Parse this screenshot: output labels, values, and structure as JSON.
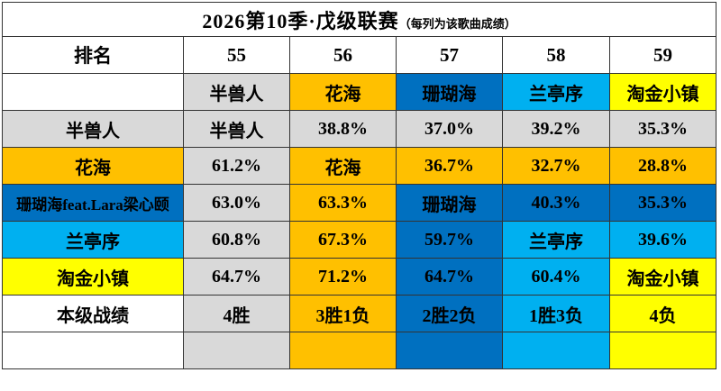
{
  "title": {
    "main": "2026第10季·戊级联赛",
    "sub": "（每列为该歌曲成绩）"
  },
  "palette": {
    "white": "#ffffff",
    "gray": "#d9d9d9",
    "orange": "#ffc000",
    "blue": "#0070c0",
    "cyan": "#00b0f0",
    "yellow": "#ffff00"
  },
  "table": {
    "header": [
      "排名",
      "55",
      "56",
      "57",
      "58",
      "59"
    ],
    "rows": [
      {
        "cells": [
          {
            "t": "",
            "bg": "white"
          },
          {
            "t": "半兽人",
            "bg": "gray"
          },
          {
            "t": "花海",
            "bg": "orange"
          },
          {
            "t": "珊瑚海",
            "bg": "blue"
          },
          {
            "t": "兰亭序",
            "bg": "cyan"
          },
          {
            "t": "淘金小镇",
            "bg": "yellow"
          }
        ]
      },
      {
        "cells": [
          {
            "t": "半兽人",
            "bg": "gray"
          },
          {
            "t": "半兽人",
            "bg": "gray"
          },
          {
            "t": "38.8%",
            "bg": "gray"
          },
          {
            "t": "37.0%",
            "bg": "gray"
          },
          {
            "t": "39.2%",
            "bg": "gray"
          },
          {
            "t": "35.3%",
            "bg": "gray"
          }
        ]
      },
      {
        "cells": [
          {
            "t": "花海",
            "bg": "orange"
          },
          {
            "t": "61.2%",
            "bg": "gray"
          },
          {
            "t": "花海",
            "bg": "orange"
          },
          {
            "t": "36.7%",
            "bg": "orange"
          },
          {
            "t": "32.7%",
            "bg": "orange"
          },
          {
            "t": "28.8%",
            "bg": "orange"
          }
        ]
      },
      {
        "cells": [
          {
            "t": "珊瑚海feat.Lara梁心颐",
            "bg": "blue"
          },
          {
            "t": "63.0%",
            "bg": "gray"
          },
          {
            "t": "63.3%",
            "bg": "orange"
          },
          {
            "t": "珊瑚海",
            "bg": "blue"
          },
          {
            "t": "40.3%",
            "bg": "blue"
          },
          {
            "t": "35.3%",
            "bg": "blue"
          }
        ]
      },
      {
        "cells": [
          {
            "t": "兰亭序",
            "bg": "cyan"
          },
          {
            "t": "60.8%",
            "bg": "gray"
          },
          {
            "t": "67.3%",
            "bg": "orange"
          },
          {
            "t": "59.7%",
            "bg": "blue"
          },
          {
            "t": "兰亭序",
            "bg": "cyan"
          },
          {
            "t": "39.6%",
            "bg": "cyan"
          }
        ]
      },
      {
        "cells": [
          {
            "t": "淘金小镇",
            "bg": "yellow"
          },
          {
            "t": "64.7%",
            "bg": "gray"
          },
          {
            "t": "71.2%",
            "bg": "orange"
          },
          {
            "t": "64.7%",
            "bg": "blue"
          },
          {
            "t": "60.4%",
            "bg": "cyan"
          },
          {
            "t": "淘金小镇",
            "bg": "yellow"
          }
        ]
      },
      {
        "cells": [
          {
            "t": "本级战绩",
            "bg": "white"
          },
          {
            "t": "4胜",
            "bg": "gray"
          },
          {
            "t": "3胜1负",
            "bg": "orange"
          },
          {
            "t": "2胜2负",
            "bg": "blue"
          },
          {
            "t": "1胜3负",
            "bg": "cyan"
          },
          {
            "t": "4负",
            "bg": "yellow"
          }
        ]
      },
      {
        "cells": [
          {
            "t": "",
            "bg": "white"
          },
          {
            "t": "",
            "bg": "gray"
          },
          {
            "t": "",
            "bg": "orange"
          },
          {
            "t": "",
            "bg": "blue"
          },
          {
            "t": "",
            "bg": "cyan"
          },
          {
            "t": "",
            "bg": "yellow"
          }
        ]
      }
    ]
  },
  "chart_data": {
    "type": "table",
    "title": "2026第10季·戊级联赛（每列为该歌曲成绩）",
    "columns": [
      "排名",
      "55",
      "56",
      "57",
      "58",
      "59"
    ],
    "column_songs": [
      "半兽人",
      "花海",
      "珊瑚海",
      "兰亭序",
      "淘金小镇"
    ],
    "row_songs": [
      "半兽人",
      "花海",
      "珊瑚海feat.Lara梁心颐",
      "兰亭序",
      "淘金小镇"
    ],
    "matrix_percent_by_row": [
      [
        null,
        "38.8%",
        "37.0%",
        "39.2%",
        "35.3%"
      ],
      [
        "61.2%",
        null,
        "36.7%",
        "32.7%",
        "28.8%"
      ],
      [
        "63.0%",
        "63.3%",
        null,
        "40.3%",
        "35.3%"
      ],
      [
        "60.8%",
        "67.3%",
        "59.7%",
        null,
        "39.6%"
      ],
      [
        "64.7%",
        "71.2%",
        "64.7%",
        "60.4%",
        null
      ]
    ],
    "records_row_label": "本级战绩",
    "records": [
      "4胜",
      "3胜1负",
      "2胜2负",
      "1胜3负",
      "4负"
    ],
    "cell_color_rule": "cell background uses the winning song's color",
    "song_colors": {
      "半兽人": "#d9d9d9",
      "花海": "#ffc000",
      "珊瑚海feat.Lara梁心颐": "#0070c0",
      "兰亭序": "#00b0f0",
      "淘金小镇": "#ffff00"
    }
  }
}
